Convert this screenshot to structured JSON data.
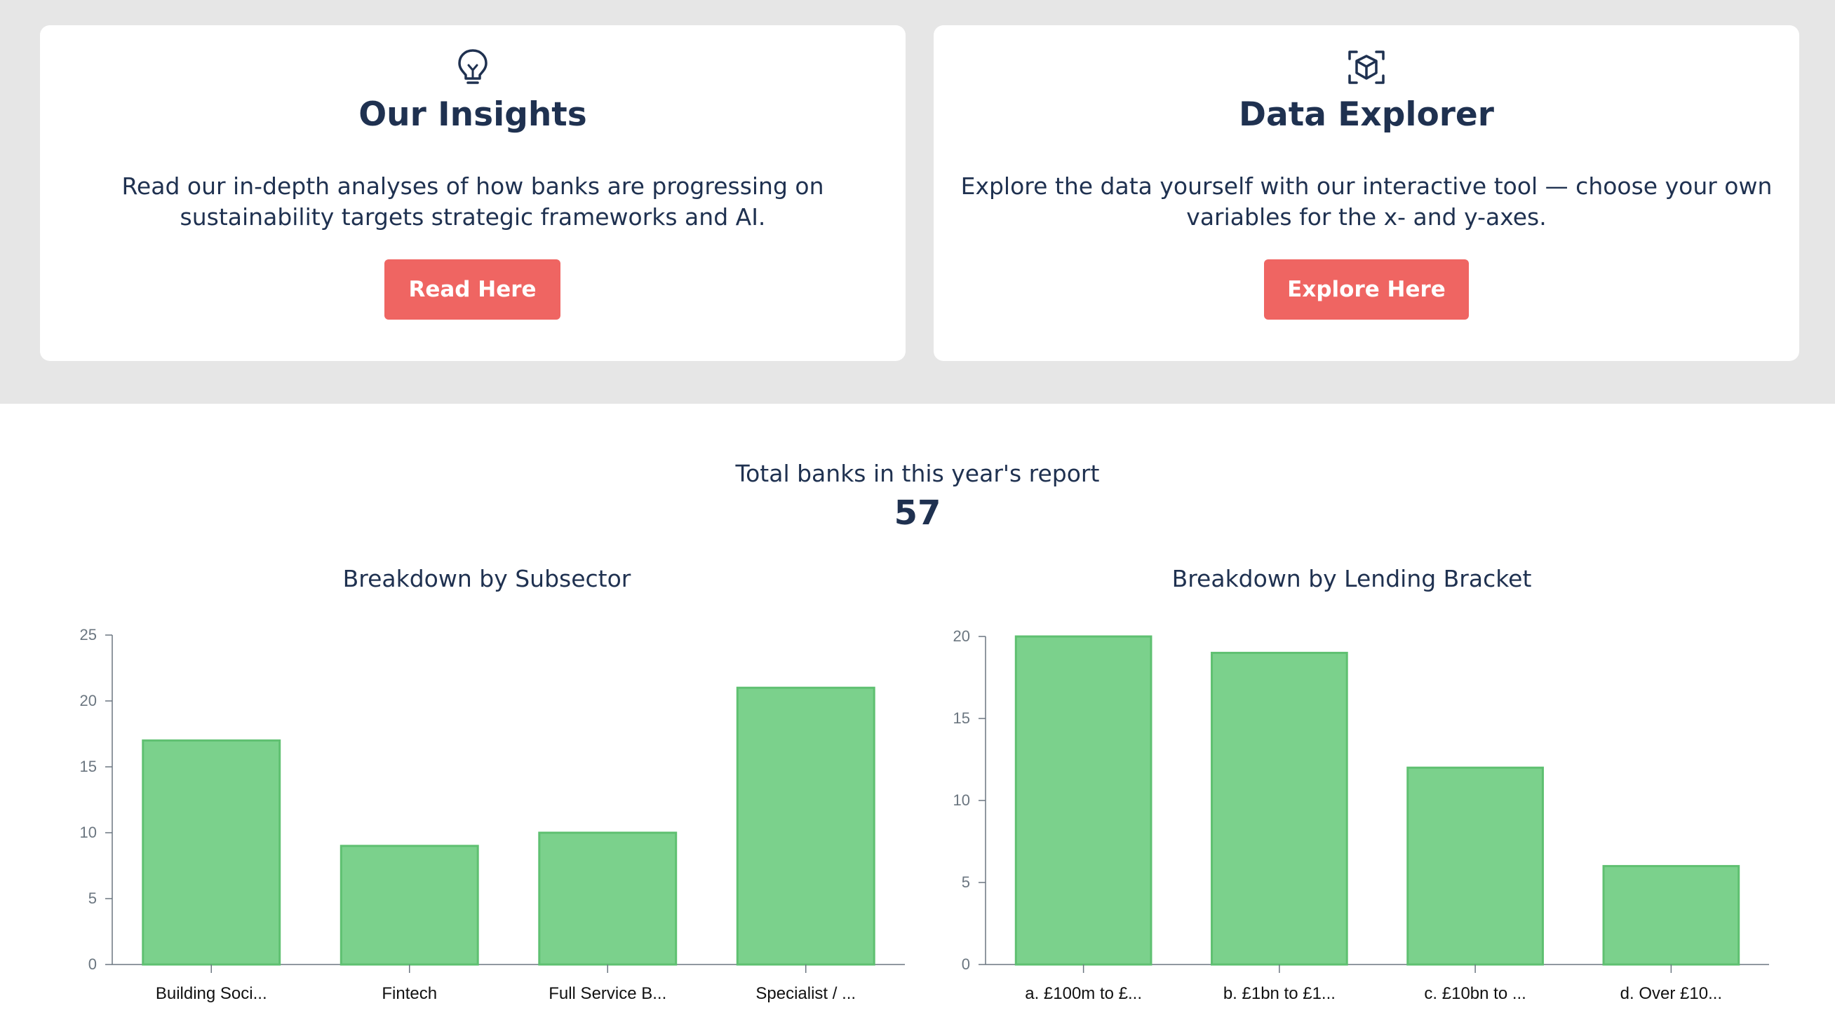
{
  "cards": [
    {
      "icon": "lightbulb-icon",
      "title": "Our Insights",
      "description": "Read our in-depth analyses of how banks are progressing on sustainability targets strategic frameworks and AI.",
      "button_label": "Read Here"
    },
    {
      "icon": "cube-scan-icon",
      "title": "Data Explorer",
      "description": "Explore the data yourself with our interactive tool — choose your own variables for the x- and y-axes.",
      "button_label": "Explore Here"
    }
  ],
  "colors": {
    "band": "#e6e6e6",
    "text": "#1f3150",
    "button": "#ef6562",
    "bar_fill": "#7bd18c",
    "bar_stroke": "#5fc071",
    "axis": "#6b7680"
  },
  "summary": {
    "label": "Total banks in this year's report",
    "value": "57"
  },
  "chart_data": [
    {
      "type": "bar",
      "title": "Breakdown by Subsector",
      "categories": [
        "Building Soci...",
        "Fintech",
        "Full Service B...",
        "Specialist / ..."
      ],
      "values": [
        17,
        9,
        10,
        21
      ],
      "ylim": [
        0,
        25
      ],
      "yticks": [
        0,
        5,
        10,
        15,
        20,
        25
      ],
      "xlabel": "",
      "ylabel": "",
      "grid": false,
      "legend": "none"
    },
    {
      "type": "bar",
      "title": "Breakdown by Lending Bracket",
      "categories": [
        "a. £100m to £...",
        "b. £1bn to £1...",
        "c. £10bn to ...",
        "d. Over £10..."
      ],
      "values": [
        20,
        19,
        12,
        6
      ],
      "ylim": [
        0,
        20
      ],
      "yticks": [
        0,
        5,
        10,
        15,
        20
      ],
      "xlabel": "",
      "ylabel": "",
      "grid": false,
      "legend": "none"
    }
  ]
}
